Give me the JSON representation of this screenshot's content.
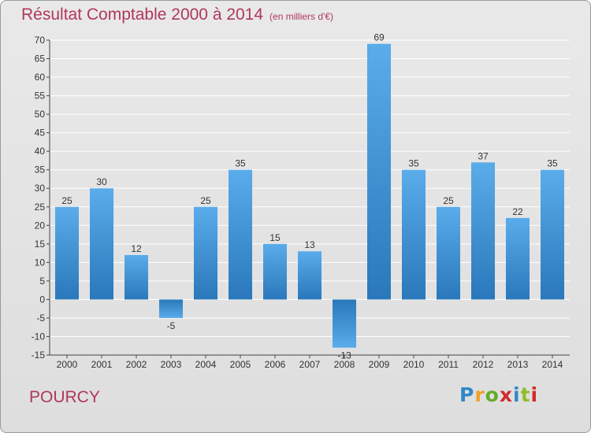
{
  "title": "Résultat Comptable 2000 à 2014",
  "subtitle": "(en milliers d'€)",
  "commune": "POURCY",
  "logo": {
    "letters": [
      "P",
      "r",
      "o",
      "x",
      "i",
      "t",
      "i"
    ],
    "colors": [
      "#2f88c6",
      "#f0a02a",
      "#63ab2a",
      "#d22b2b",
      "#2f88c6",
      "#8fbf27",
      "#d22b2b"
    ]
  },
  "colors": {
    "bar_top": "#5aacea",
    "bar_bottom": "#2a78bb",
    "grid": "#ffffff",
    "axis": "#444444",
    "title": "#b0385a"
  },
  "chart_data": {
    "type": "bar",
    "title": "Résultat Comptable 2000 à 2014",
    "subtitle": "(en milliers d'€)",
    "categories": [
      "2000",
      "2001",
      "2002",
      "2003",
      "2004",
      "2005",
      "2006",
      "2007",
      "2008",
      "2009",
      "2010",
      "2011",
      "2012",
      "2013",
      "2014"
    ],
    "values": [
      25,
      30,
      12,
      -5,
      25,
      35,
      15,
      13,
      -13,
      69,
      35,
      25,
      37,
      22,
      35
    ],
    "value_labels": [
      "25",
      "30",
      "12",
      "-5",
      "25",
      "35",
      "15",
      "13",
      "-13",
      "69",
      "35",
      "25",
      "37",
      "22",
      "35"
    ],
    "yticks": [
      -15,
      -10,
      -5,
      0,
      5,
      10,
      15,
      20,
      25,
      30,
      35,
      40,
      45,
      50,
      55,
      60,
      65,
      70
    ],
    "ylim": [
      -15,
      70
    ],
    "xlabel": "",
    "ylabel": "",
    "grid": true
  }
}
